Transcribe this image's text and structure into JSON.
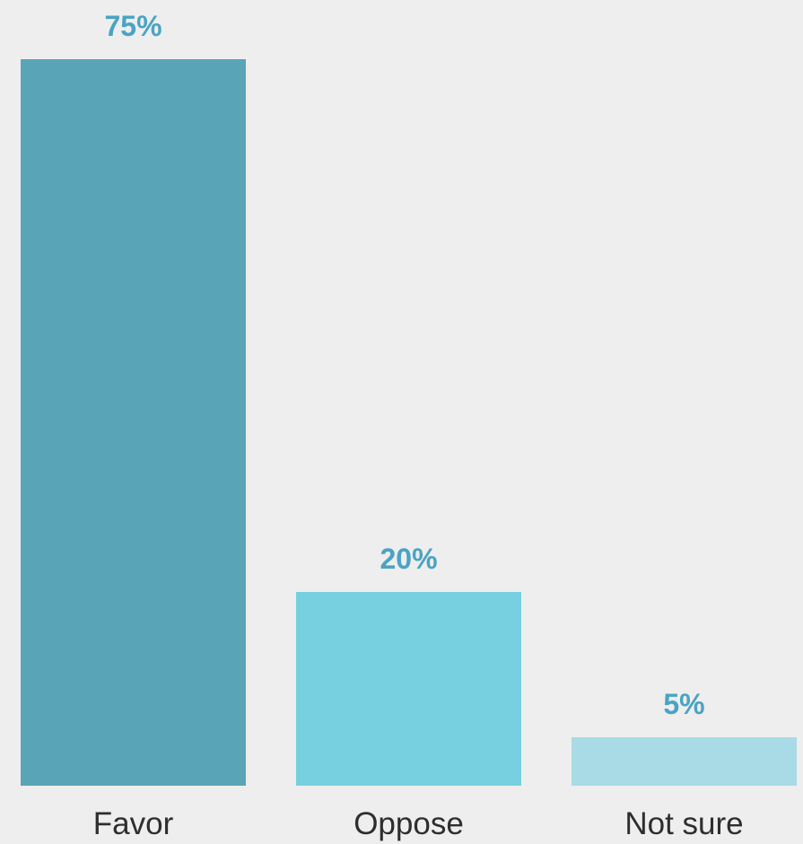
{
  "chart_data": {
    "type": "bar",
    "categories": [
      "Favor",
      "Oppose",
      "Not sure"
    ],
    "values": [
      75,
      20,
      5
    ],
    "value_labels": [
      "75%",
      "20%",
      "5%"
    ],
    "colors": [
      "#5aa4b8",
      "#76d0e0",
      "#a8dbe5"
    ],
    "label_color": "#4aa3c4",
    "title": "",
    "xlabel": "",
    "ylabel": "",
    "ylim": [
      0,
      75
    ],
    "grid": false,
    "legend": "none"
  }
}
